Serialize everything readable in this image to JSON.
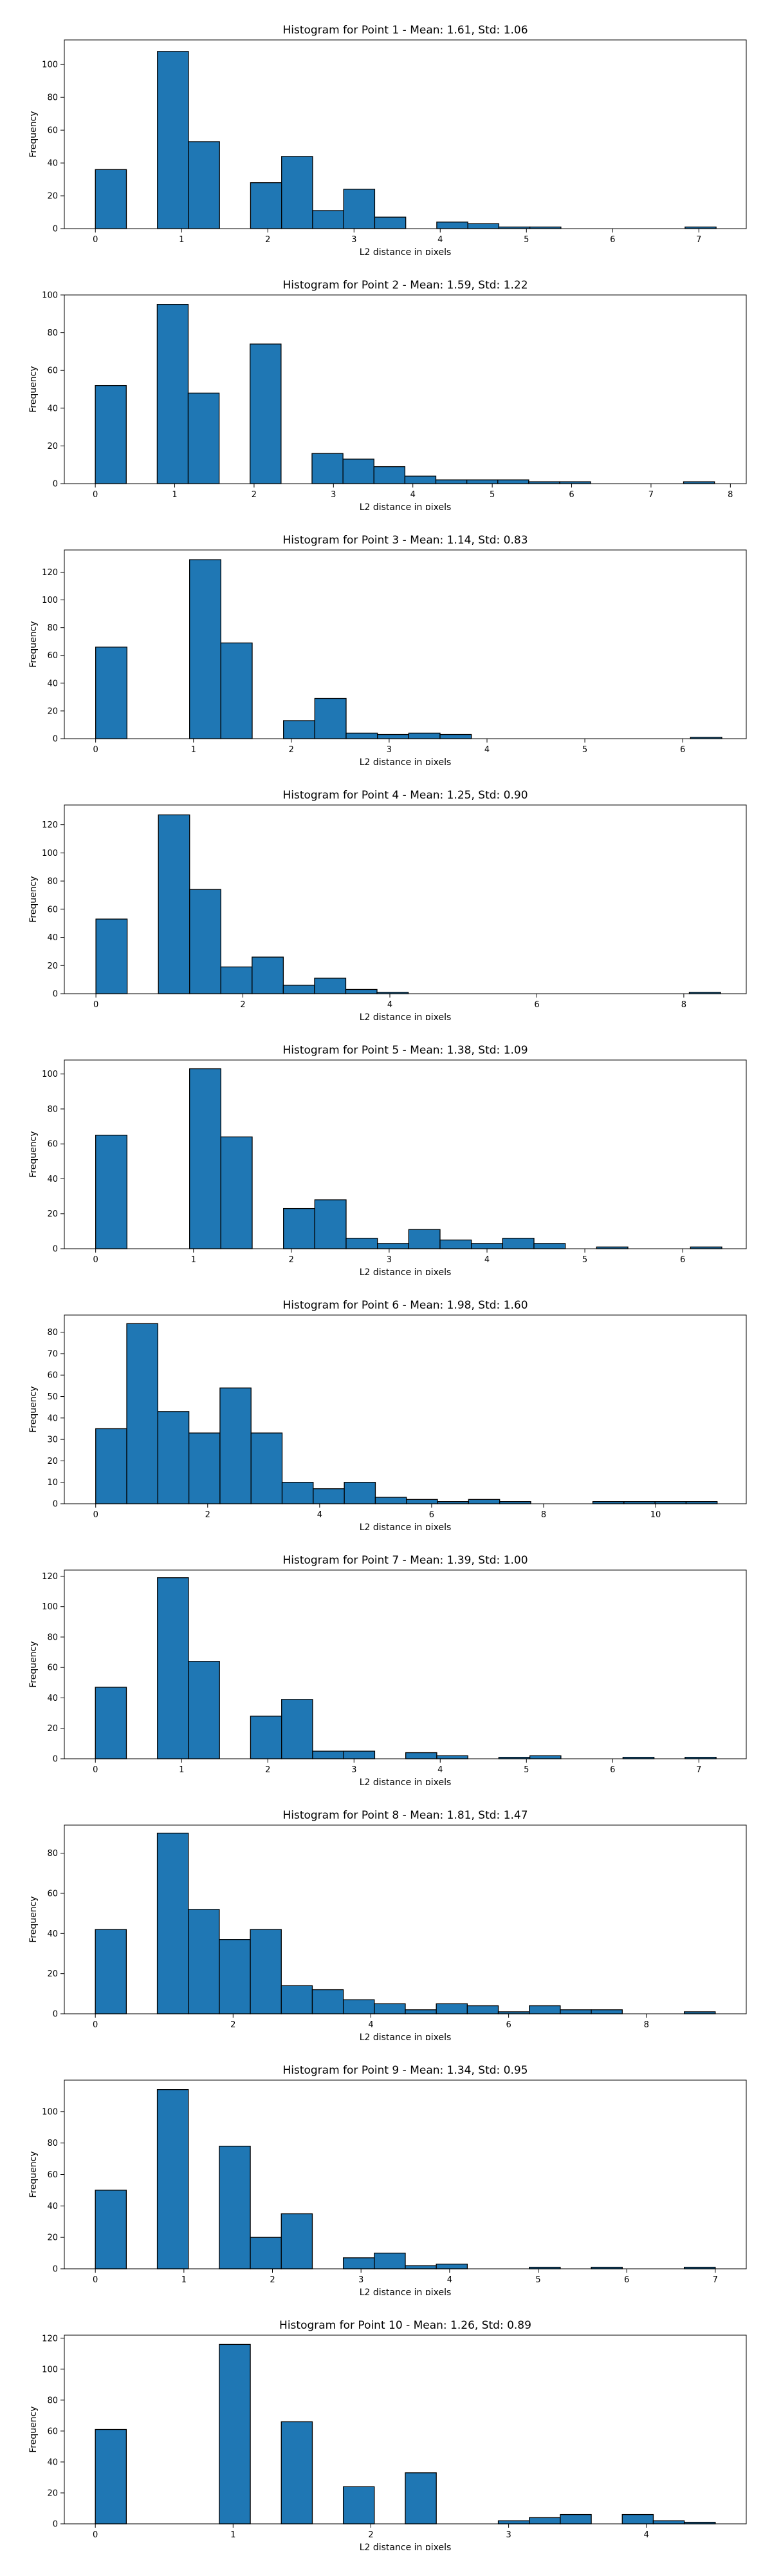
{
  "chart_data": [
    {
      "type": "bar",
      "title": "Histogram for Point 1 - Mean: 1.61, Std: 1.06",
      "xlabel": "L2 distance in pixels",
      "ylabel": "Frequency",
      "xlim": [
        -0.36,
        7.55
      ],
      "ylim": [
        0,
        115
      ],
      "xticks": [
        0,
        1,
        2,
        3,
        4,
        5,
        6,
        7
      ],
      "yticks": [
        0,
        20,
        40,
        60,
        80,
        100
      ],
      "bin_edges": [
        0,
        0.36,
        0.72,
        1.08,
        1.44,
        1.8,
        2.16,
        2.52,
        2.88,
        3.24,
        3.6,
        3.96,
        4.32,
        4.68,
        5.04,
        5.4,
        5.76,
        6.12,
        6.48,
        6.84,
        7.2
      ],
      "values": [
        36,
        0,
        108,
        53,
        0,
        28,
        44,
        11,
        24,
        7,
        0,
        4,
        3,
        1,
        1,
        0,
        0,
        0,
        0,
        1
      ]
    },
    {
      "type": "bar",
      "title": "Histogram for Point 2 - Mean: 1.59, Std: 1.22",
      "xlabel": "L2 distance in pixels",
      "ylabel": "Frequency",
      "xlim": [
        -0.39,
        8.2
      ],
      "ylim": [
        0,
        100
      ],
      "xticks": [
        0,
        1,
        2,
        3,
        4,
        5,
        6,
        7,
        8
      ],
      "yticks": [
        0,
        20,
        40,
        60,
        80,
        100
      ],
      "bin_edges": [
        0,
        0.39,
        0.78,
        1.17,
        1.56,
        1.95,
        2.34,
        2.73,
        3.12,
        3.51,
        3.9,
        4.29,
        4.68,
        5.07,
        5.46,
        5.85,
        6.24,
        6.63,
        7.02,
        7.41,
        7.8
      ],
      "values": [
        52,
        0,
        95,
        48,
        0,
        74,
        0,
        16,
        13,
        9,
        4,
        2,
        2,
        2,
        1,
        1,
        0,
        0,
        0,
        1
      ]
    },
    {
      "type": "bar",
      "title": "Histogram for Point 3 - Mean: 1.14, Std: 0.83",
      "xlabel": "L2 distance in pixels",
      "ylabel": "Frequency",
      "xlim": [
        -0.32,
        6.65
      ],
      "ylim": [
        0,
        136
      ],
      "xticks": [
        0,
        1,
        2,
        3,
        4,
        5,
        6
      ],
      "yticks": [
        0,
        20,
        40,
        60,
        80,
        100,
        120
      ],
      "bin_edges": [
        0,
        0.32,
        0.64,
        0.96,
        1.28,
        1.6,
        1.92,
        2.24,
        2.56,
        2.88,
        3.2,
        3.52,
        3.84,
        4.16,
        4.48,
        4.8,
        5.12,
        5.44,
        5.76,
        6.08,
        6.4
      ],
      "values": [
        66,
        0,
        0,
        129,
        69,
        0,
        13,
        29,
        4,
        3,
        4,
        3,
        0,
        0,
        0,
        0,
        0,
        0,
        0,
        1
      ]
    },
    {
      "type": "bar",
      "title": "Histogram for Point 4 - Mean: 1.25, Std: 0.90",
      "xlabel": "L2 distance in pixels",
      "ylabel": "Frequency",
      "xlim": [
        -0.43,
        8.85
      ],
      "ylim": [
        0,
        134
      ],
      "xticks": [
        0,
        2,
        4,
        6,
        8
      ],
      "yticks": [
        0,
        20,
        40,
        60,
        80,
        100,
        120
      ],
      "bin_edges": [
        0,
        0.425,
        0.85,
        1.275,
        1.7,
        2.125,
        2.55,
        2.975,
        3.4,
        3.825,
        4.25,
        4.675,
        5.1,
        5.525,
        5.95,
        6.375,
        6.8,
        7.225,
        7.65,
        8.075,
        8.5
      ],
      "values": [
        53,
        0,
        127,
        74,
        19,
        26,
        6,
        11,
        3,
        1,
        0,
        0,
        0,
        0,
        0,
        0,
        0,
        0,
        0,
        1
      ]
    },
    {
      "type": "bar",
      "title": "Histogram for Point 5 - Mean: 1.38, Std: 1.09",
      "xlabel": "L2 distance in pixels",
      "ylabel": "Frequency",
      "xlim": [
        -0.32,
        6.65
      ],
      "ylim": [
        0,
        108
      ],
      "xticks": [
        0,
        1,
        2,
        3,
        4,
        5,
        6
      ],
      "yticks": [
        0,
        20,
        40,
        60,
        80,
        100
      ],
      "bin_edges": [
        0,
        0.32,
        0.64,
        0.96,
        1.28,
        1.6,
        1.92,
        2.24,
        2.56,
        2.88,
        3.2,
        3.52,
        3.84,
        4.16,
        4.48,
        4.8,
        5.12,
        5.44,
        5.76,
        6.08,
        6.4
      ],
      "values": [
        65,
        0,
        0,
        103,
        64,
        0,
        23,
        28,
        6,
        3,
        11,
        5,
        3,
        6,
        3,
        0,
        1,
        0,
        0,
        1
      ]
    },
    {
      "type": "bar",
      "title": "Histogram for Point 6 - Mean: 1.98, Std: 1.60",
      "xlabel": "L2 distance in pixels",
      "ylabel": "Frequency",
      "xlim": [
        -0.56,
        11.62
      ],
      "ylim": [
        0,
        88
      ],
      "xticks": [
        0,
        2,
        4,
        6,
        8,
        10
      ],
      "yticks": [
        0,
        10,
        20,
        30,
        40,
        50,
        60,
        70,
        80
      ],
      "bin_edges": [
        0,
        0.555,
        1.11,
        1.665,
        2.22,
        2.775,
        3.33,
        3.885,
        4.44,
        4.995,
        5.55,
        6.105,
        6.66,
        7.215,
        7.77,
        8.325,
        8.88,
        9.435,
        9.99,
        10.545,
        11.1
      ],
      "values": [
        35,
        84,
        43,
        33,
        54,
        33,
        10,
        7,
        10,
        3,
        2,
        1,
        2,
        1,
        0,
        0,
        1,
        1,
        1,
        1
      ]
    },
    {
      "type": "bar",
      "title": "Histogram for Point 7 - Mean: 1.39, Std: 1.00",
      "xlabel": "L2 distance in pixels",
      "ylabel": "Frequency",
      "xlim": [
        -0.36,
        7.55
      ],
      "ylim": [
        0,
        124
      ],
      "xticks": [
        0,
        1,
        2,
        3,
        4,
        5,
        6,
        7
      ],
      "yticks": [
        0,
        20,
        40,
        60,
        80,
        100,
        120
      ],
      "bin_edges": [
        0,
        0.36,
        0.72,
        1.08,
        1.44,
        1.8,
        2.16,
        2.52,
        2.88,
        3.24,
        3.6,
        3.96,
        4.32,
        4.68,
        5.04,
        5.4,
        5.76,
        6.12,
        6.48,
        6.84,
        7.2
      ],
      "values": [
        47,
        0,
        119,
        64,
        0,
        28,
        39,
        5,
        5,
        0,
        4,
        2,
        0,
        1,
        2,
        0,
        0,
        1,
        0,
        1
      ]
    },
    {
      "type": "bar",
      "title": "Histogram for Point 8 - Mean: 1.81, Std: 1.47",
      "xlabel": "L2 distance in pixels",
      "ylabel": "Frequency",
      "xlim": [
        -0.45,
        9.45
      ],
      "ylim": [
        0,
        94
      ],
      "xticks": [
        0,
        2,
        4,
        6,
        8
      ],
      "yticks": [
        0,
        20,
        40,
        60,
        80
      ],
      "bin_edges": [
        0,
        0.45,
        0.9,
        1.35,
        1.8,
        2.25,
        2.7,
        3.15,
        3.6,
        4.05,
        4.5,
        4.95,
        5.4,
        5.85,
        6.3,
        6.75,
        7.2,
        7.65,
        8.1,
        8.55,
        9.0
      ],
      "values": [
        42,
        0,
        90,
        52,
        37,
        42,
        14,
        12,
        7,
        5,
        2,
        5,
        4,
        1,
        4,
        2,
        2,
        0,
        0,
        1
      ]
    },
    {
      "type": "bar",
      "title": "Histogram for Point 9 - Mean: 1.34, Std: 0.95",
      "xlabel": "L2 distance in pixels",
      "ylabel": "Frequency",
      "xlim": [
        -0.35,
        7.35
      ],
      "ylim": [
        0,
        120
      ],
      "xticks": [
        0,
        1,
        2,
        3,
        4,
        5,
        6,
        7
      ],
      "yticks": [
        0,
        20,
        40,
        60,
        80,
        100
      ],
      "bin_edges": [
        0,
        0.35,
        0.7,
        1.05,
        1.4,
        1.75,
        2.1,
        2.45,
        2.8,
        3.15,
        3.5,
        3.85,
        4.2,
        4.55,
        4.9,
        5.25,
        5.6,
        5.95,
        6.3,
        6.65,
        7.0
      ],
      "values": [
        50,
        0,
        114,
        0,
        78,
        20,
        35,
        0,
        7,
        10,
        2,
        3,
        0,
        0,
        1,
        0,
        1,
        0,
        0,
        1
      ]
    },
    {
      "type": "bar",
      "title": "Histogram for Point 10 - Mean: 1.26, Std: 0.89",
      "xlabel": "L2 distance in pixels",
      "ylabel": "Frequency",
      "xlim": [
        -0.225,
        4.725
      ],
      "ylim": [
        0,
        122
      ],
      "xticks": [
        0,
        1,
        2,
        3,
        4
      ],
      "yticks": [
        0,
        20,
        40,
        60,
        80,
        100,
        120
      ],
      "bin_edges": [
        0,
        0.225,
        0.45,
        0.675,
        0.9,
        1.125,
        1.35,
        1.575,
        1.8,
        2.025,
        2.25,
        2.475,
        2.7,
        2.925,
        3.15,
        3.375,
        3.6,
        3.825,
        4.05,
        4.275,
        4.5
      ],
      "values": [
        61,
        0,
        0,
        0,
        116,
        0,
        66,
        0,
        24,
        0,
        33,
        0,
        0,
        2,
        4,
        6,
        0,
        6,
        2,
        1
      ]
    }
  ]
}
